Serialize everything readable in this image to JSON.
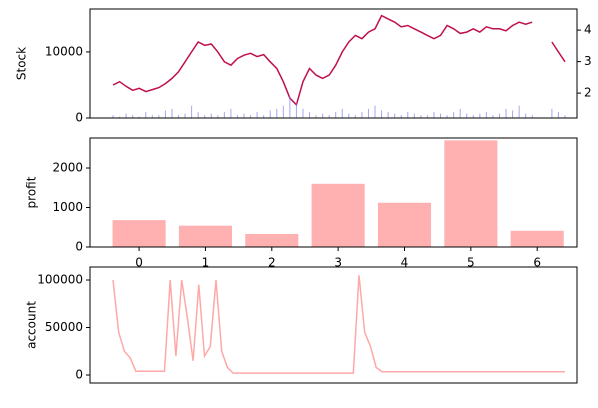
{
  "chart_data": [
    {
      "type": "line",
      "ylabel": "Stock",
      "ylim": [
        0,
        16500
      ],
      "yticks": [
        0,
        10000
      ],
      "y2lim": [
        1.21,
        4.67
      ],
      "y2ticks": [
        2,
        3,
        4
      ],
      "categories": [
        null,
        null,
        null,
        null,
        null,
        null,
        null,
        null,
        null,
        null,
        null,
        null,
        null,
        null,
        null,
        null,
        null,
        null,
        null,
        null,
        null,
        null,
        null,
        null,
        null,
        null,
        null,
        null,
        null,
        null,
        null,
        null,
        null,
        null,
        null,
        null,
        null,
        null,
        null,
        null,
        null,
        null,
        null,
        null,
        null,
        null,
        null,
        null,
        null,
        null,
        null,
        null,
        null,
        null,
        null,
        null,
        null,
        null,
        null,
        null,
        null,
        null,
        null,
        null,
        null,
        null,
        null,
        null,
        null,
        null
      ],
      "series": [
        {
          "color": "#c0104a",
          "values": [
            5000,
            5500,
            4800,
            4200,
            4500,
            4000,
            4300,
            4600,
            5200,
            6000,
            7000,
            8500,
            10000,
            11500,
            11000,
            11200,
            10000,
            8500,
            8000,
            9000,
            9500,
            9800,
            9300,
            9600,
            8500,
            7500,
            5500,
            3000,
            2000,
            5500,
            7500,
            6500,
            6000,
            6500,
            8000,
            10000,
            11500,
            12500,
            12000,
            13000,
            13500,
            15500,
            15000,
            14500,
            13800,
            14000,
            13500,
            13000,
            12500,
            12000,
            12500,
            14000,
            13500,
            12800,
            13000,
            13500,
            13000,
            13800,
            13500,
            13500,
            13200,
            14000,
            14500,
            14200,
            14500,
            null,
            null,
            11500,
            10000,
            8500
          ]
        },
        {
          "type": "bar",
          "axis": "y2",
          "color": "#8080f0",
          "values": [
            1.3,
            1.25,
            1.35,
            1.3,
            1.25,
            1.4,
            1.3,
            1.3,
            1.45,
            1.5,
            1.3,
            1.35,
            1.6,
            1.4,
            1.3,
            1.35,
            1.3,
            1.4,
            1.5,
            1.3,
            1.35,
            1.3,
            1.4,
            1.3,
            1.45,
            1.5,
            1.6,
            1.9,
            1.7,
            1.5,
            1.4,
            1.3,
            1.35,
            1.3,
            1.4,
            1.5,
            1.35,
            1.3,
            1.4,
            1.5,
            1.6,
            1.45,
            1.4,
            1.35,
            1.3,
            1.4,
            1.35,
            1.3,
            1.3,
            1.4,
            1.35,
            1.3,
            1.4,
            1.5,
            1.35,
            1.3,
            1.35,
            1.4,
            1.3,
            1.35,
            1.5,
            1.45,
            1.6,
            1.35,
            1.3,
            null,
            null,
            1.5,
            1.4,
            1.3
          ]
        }
      ]
    },
    {
      "type": "bar",
      "ylabel": "profit",
      "ylim": [
        0,
        2760
      ],
      "yticks": [
        0,
        1000,
        2000
      ],
      "xlim": [
        -0.74,
        6.6
      ],
      "categories": [
        0,
        1,
        2,
        3,
        4,
        5,
        6
      ],
      "color": "#ffb0b0",
      "values": [
        680,
        540,
        330,
        1600,
        1120,
        2700,
        410
      ]
    },
    {
      "type": "line",
      "ylabel": "account",
      "ylim": [
        -8400,
        113700
      ],
      "yticks": [
        0,
        50000,
        100000
      ],
      "categories": [
        null,
        null,
        null,
        null,
        null,
        null,
        null,
        null,
        null,
        null,
        null,
        null,
        null,
        null,
        null,
        null,
        null,
        null,
        null,
        null,
        null,
        null,
        null,
        null,
        null,
        null,
        null,
        null,
        null,
        null,
        null,
        null,
        null,
        null,
        null,
        null,
        null,
        null,
        null,
        null,
        null,
        null,
        null,
        null,
        null,
        null,
        null,
        null,
        null,
        null,
        null,
        null,
        null,
        null,
        null,
        null,
        null,
        null,
        null,
        null,
        null,
        null,
        null,
        null,
        null,
        null,
        null,
        null,
        null,
        null,
        null,
        null,
        null,
        null,
        null,
        null,
        null,
        null,
        null,
        null
      ],
      "series": [
        {
          "color": "#ffa8a8",
          "values": [
            100000,
            45000,
            25000,
            18000,
            4000,
            4000,
            4000,
            4000,
            4000,
            4000,
            100000,
            20000,
            100000,
            60000,
            15000,
            95000,
            20000,
            30000,
            100000,
            25000,
            8000,
            2000,
            2000,
            2000,
            2000,
            2000,
            2000,
            2000,
            2000,
            2000,
            2000,
            2000,
            2000,
            2000,
            2000,
            2000,
            2000,
            2000,
            2000,
            2000,
            2000,
            2000,
            2000,
            105000,
            45000,
            30000,
            8000,
            3500,
            3500,
            3500,
            3500,
            3500,
            3500,
            3500,
            3500,
            3500,
            3500,
            3500,
            3500,
            3500,
            3500,
            3500,
            3500,
            3500,
            3500,
            3500,
            3500,
            3500,
            3500,
            3500,
            3500,
            3500,
            3500,
            3500,
            3500,
            3500,
            3500,
            3500,
            3500,
            3500
          ]
        }
      ]
    }
  ]
}
